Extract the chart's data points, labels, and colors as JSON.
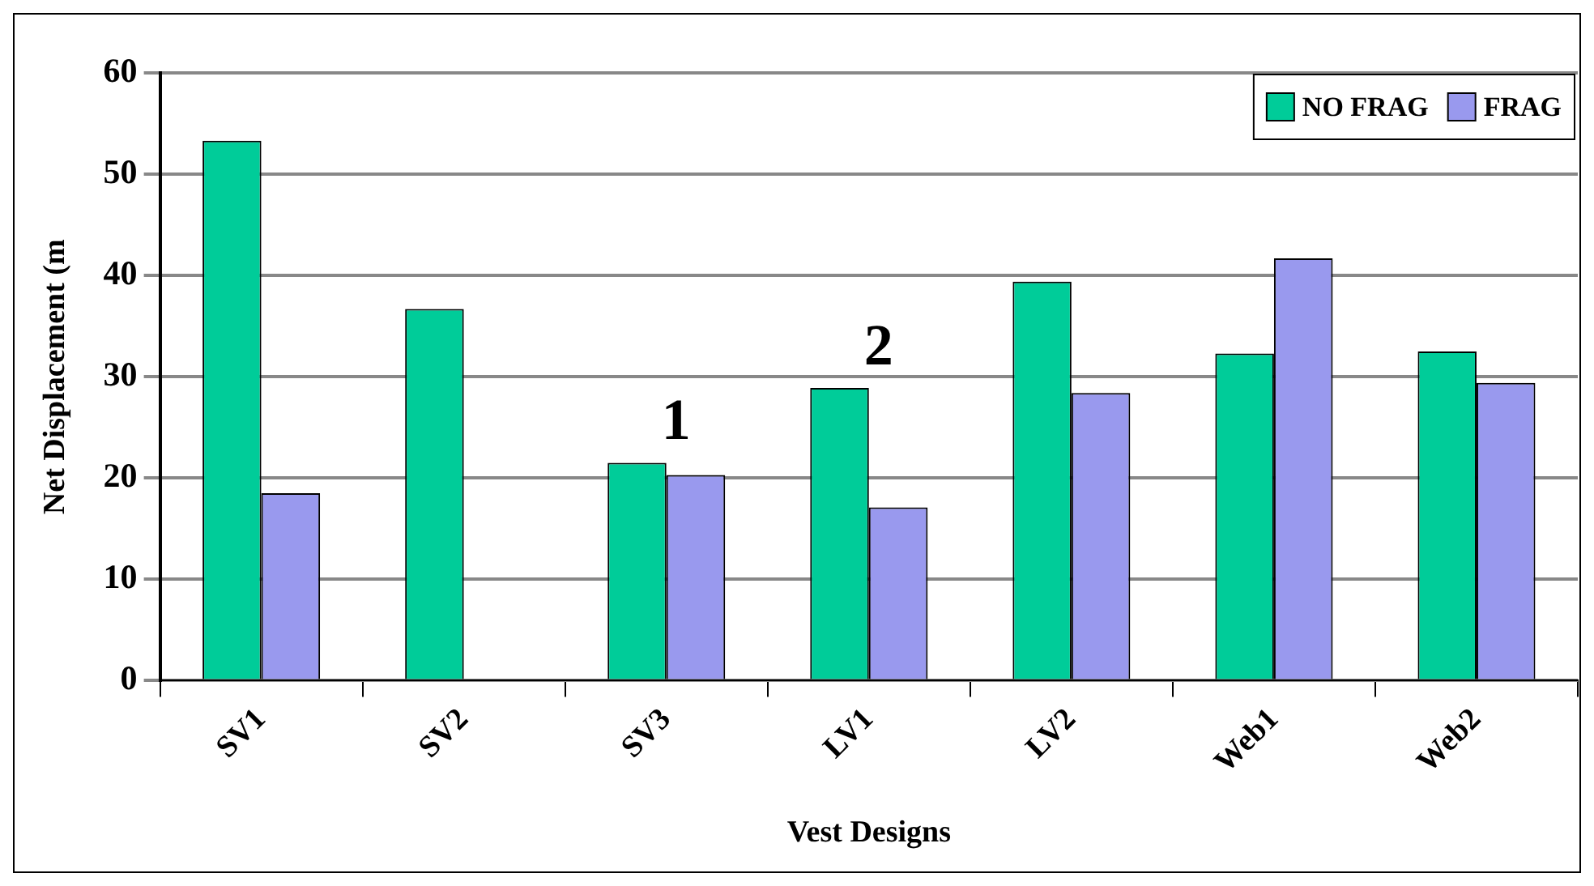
{
  "chart_data": {
    "type": "bar",
    "xlabel": "Vest Designs",
    "ylabel": "Net Displacement (m",
    "categories": [
      "SV1",
      "SV2",
      "SV3",
      "LV1",
      "LV2",
      "Web1",
      "Web2"
    ],
    "series": [
      {
        "name": "NO FRAG",
        "color": "#00cc99",
        "values": [
          53.3,
          36.7,
          21.5,
          28.9,
          39.4,
          32.3,
          32.5
        ]
      },
      {
        "name": "FRAG",
        "color": "#9999ee",
        "values": [
          18.5,
          null,
          20.3,
          17.1,
          28.4,
          41.7,
          29.4
        ]
      }
    ],
    "ylim": [
      0,
      60
    ],
    "yticks": [
      0,
      10,
      20,
      30,
      40,
      50,
      60
    ],
    "grid": "y",
    "legend": "top right",
    "annotations": [
      {
        "text": "1",
        "x": "SV3",
        "y": 21.5
      },
      {
        "text": "2",
        "x": "LV1",
        "y": 28.9
      }
    ]
  }
}
